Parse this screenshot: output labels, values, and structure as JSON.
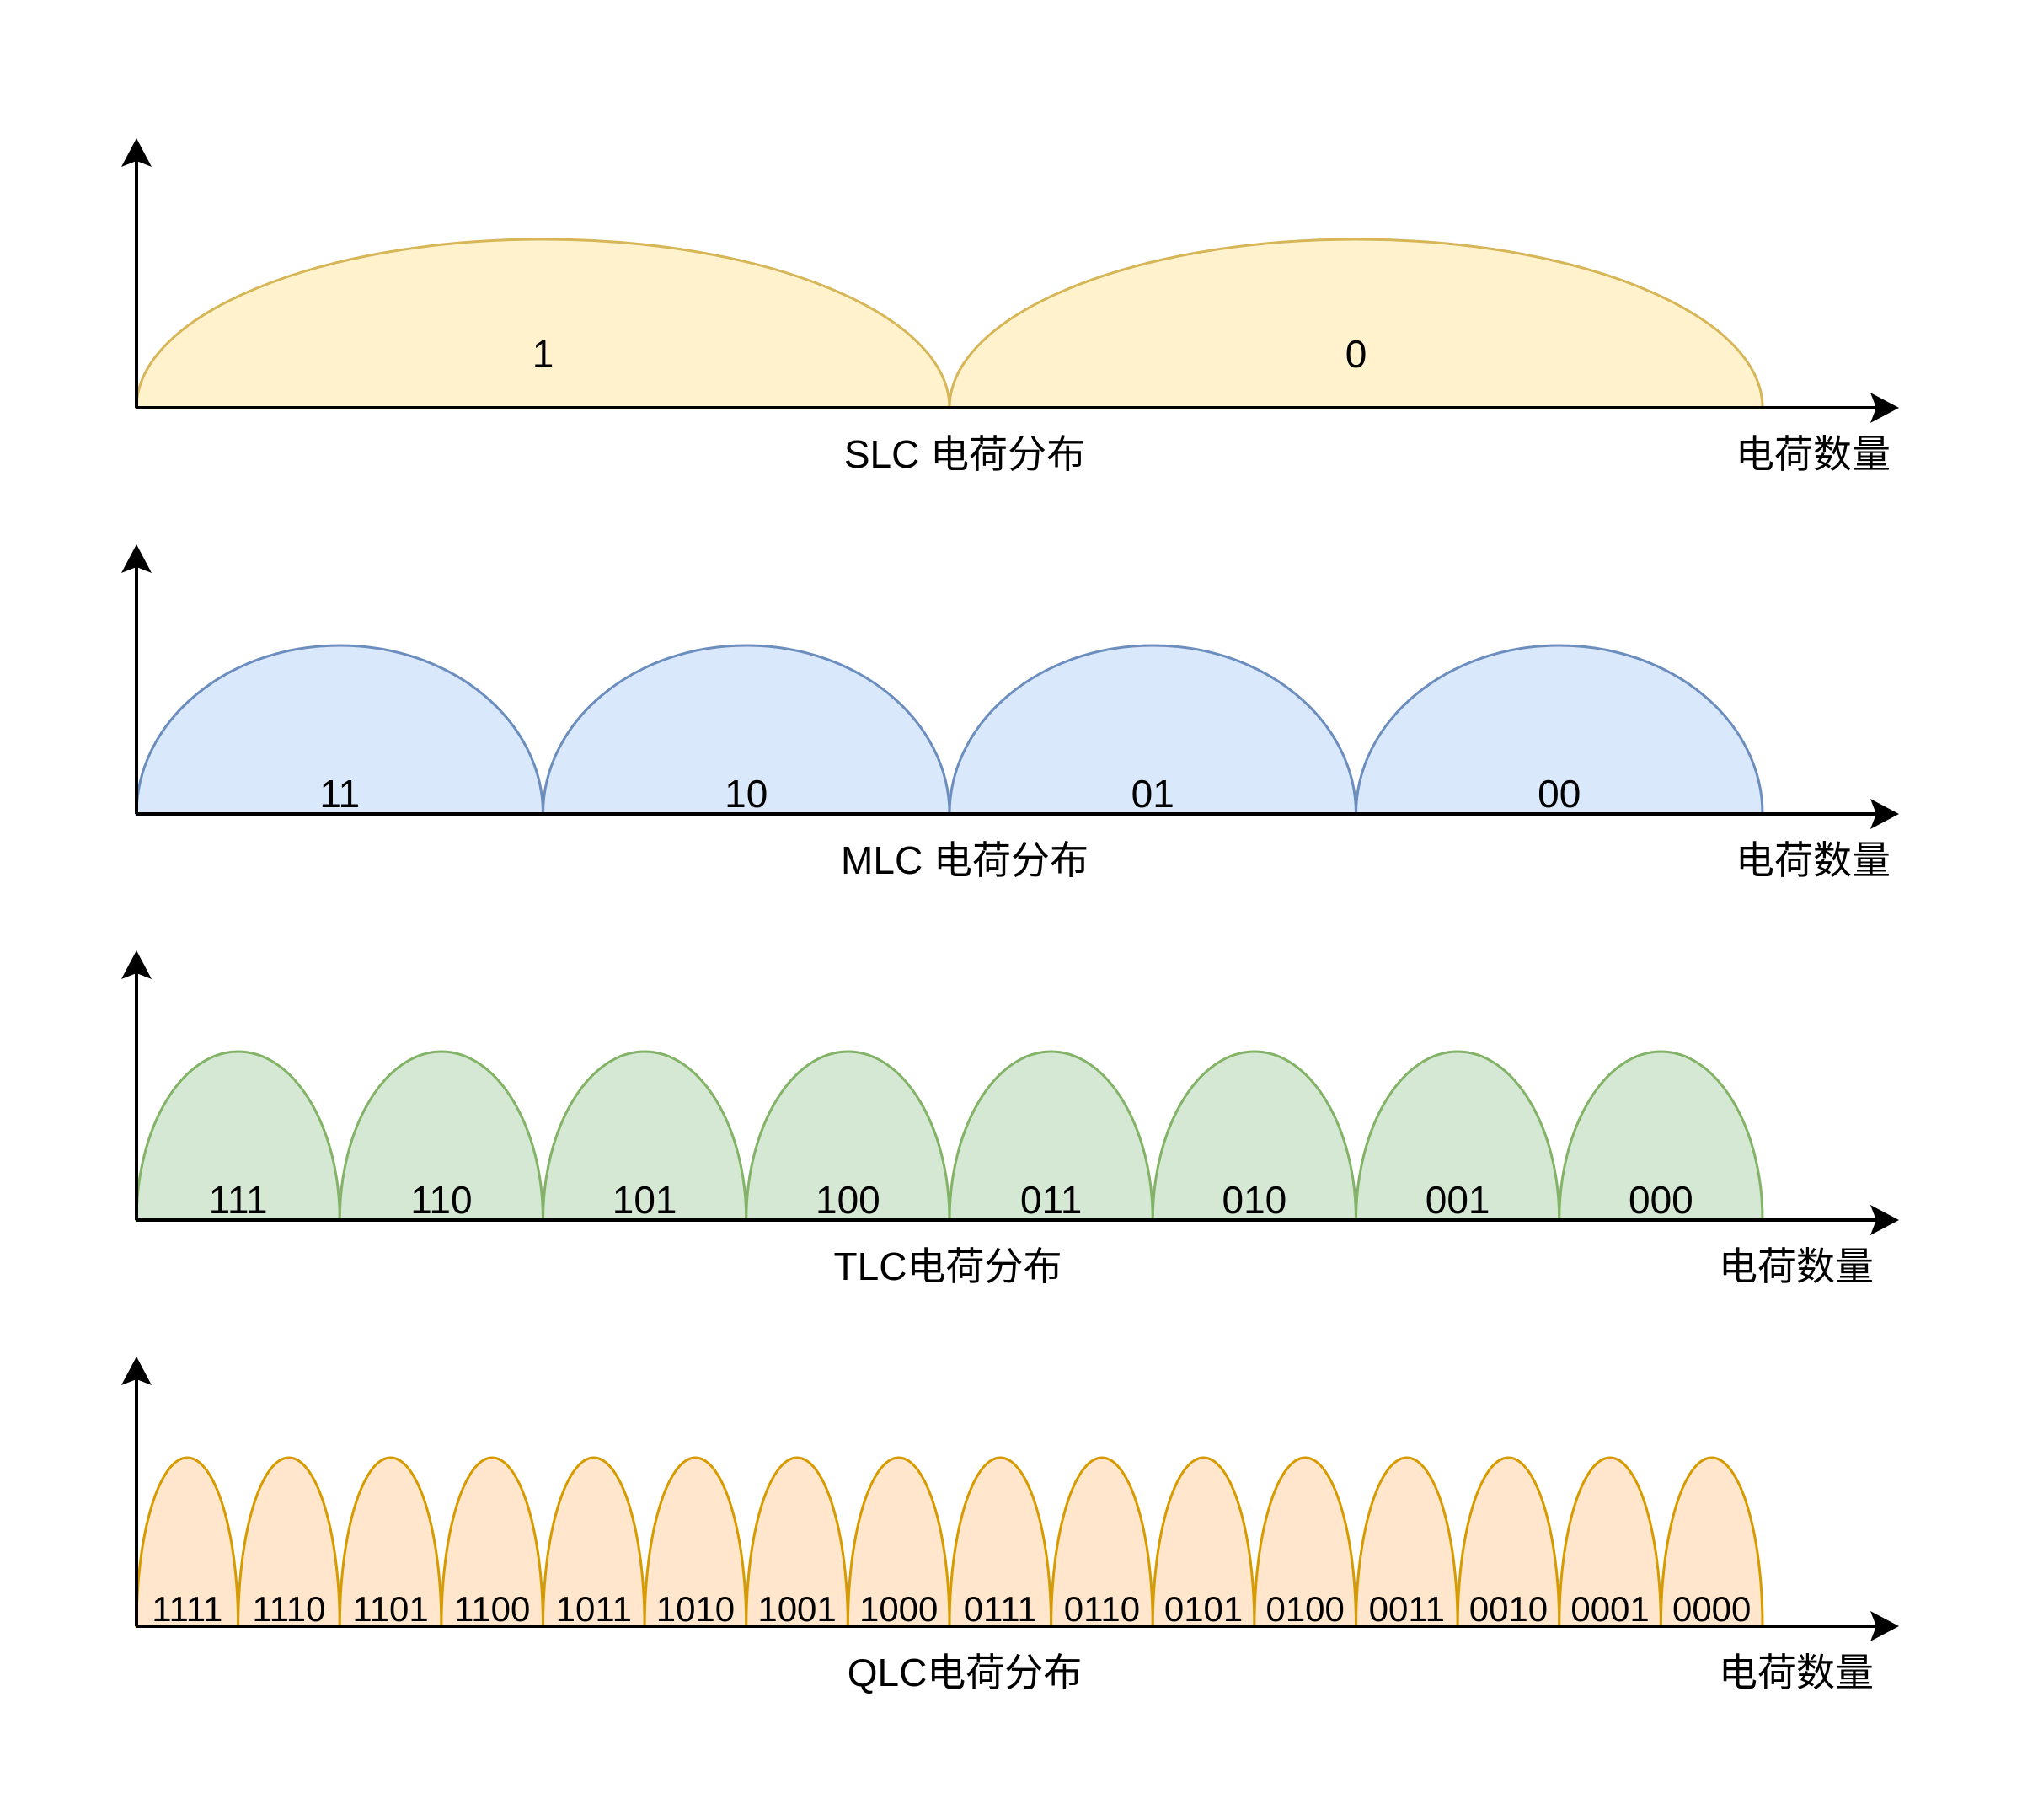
{
  "panels": [
    {
      "id": "slc",
      "caption": "SLC 电荷分布",
      "axis_label": "电荷数量",
      "states": [
        "1",
        "0"
      ],
      "fill_color": "#fff2cc",
      "stroke_color": "#d6b656"
    },
    {
      "id": "mlc",
      "caption": "MLC 电荷分布",
      "axis_label": "电荷数量",
      "states": [
        "11",
        "10",
        "01",
        "00"
      ],
      "fill_color": "#dae8fc",
      "stroke_color": "#6c8ebf"
    },
    {
      "id": "tlc",
      "caption": "TLC电荷分布",
      "axis_label": "电荷数量",
      "states": [
        "111",
        "110",
        "101",
        "100",
        "011",
        "010",
        "001",
        "000"
      ],
      "fill_color": "#d5e8d4",
      "stroke_color": "#82b366"
    },
    {
      "id": "qlc",
      "caption": "QLC电荷分布",
      "axis_label": "电荷数量",
      "states": [
        "1111",
        "1110",
        "1101",
        "1100",
        "1011",
        "1010",
        "1001",
        "1000",
        "0111",
        "0110",
        "0101",
        "0100",
        "0011",
        "0010",
        "0001",
        "0000"
      ],
      "fill_color": "#ffe6cc",
      "stroke_color": "#d79b00"
    }
  ]
}
